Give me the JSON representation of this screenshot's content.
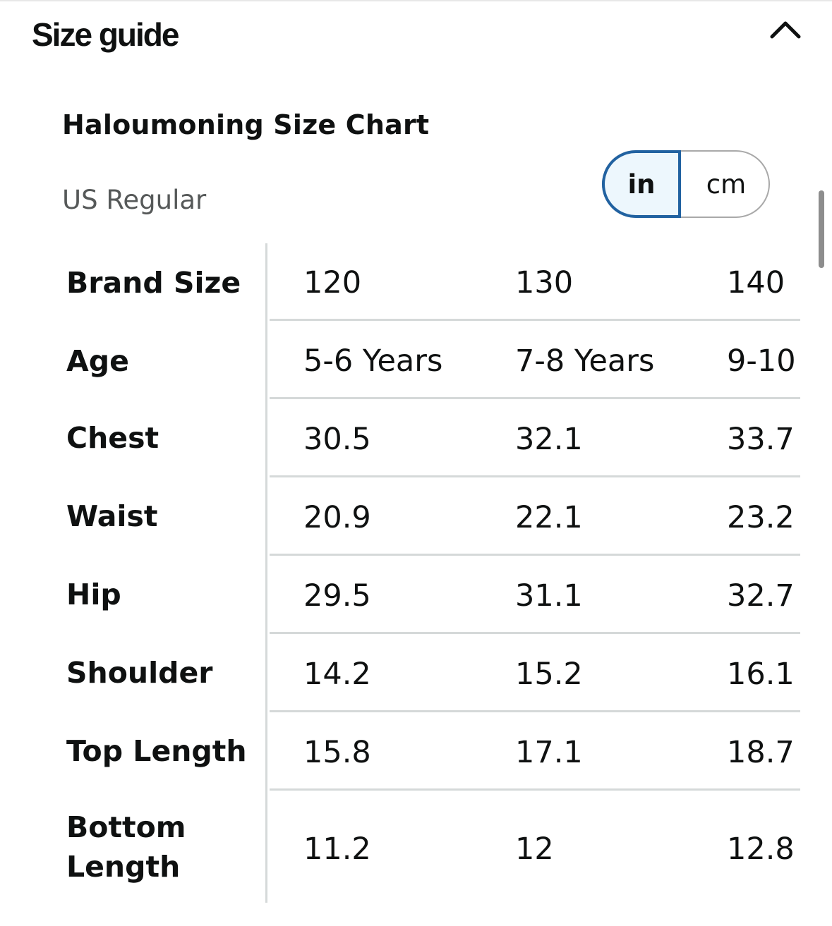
{
  "header": {
    "title": "Size guide",
    "collapse_icon": "chevron-up-icon"
  },
  "chart": {
    "title": "Haloumoning Size Chart",
    "region": "US Regular",
    "units": {
      "in": "in",
      "cm": "cm",
      "selected": "in"
    }
  },
  "table": {
    "rows": [
      {
        "label": "Brand Size",
        "values": [
          "120",
          "130",
          "140"
        ]
      },
      {
        "label": "Age",
        "values": [
          "5-6 Years",
          "7-8 Years",
          "9-10"
        ]
      },
      {
        "label": "Chest",
        "values": [
          "30.5",
          "32.1",
          "33.7"
        ]
      },
      {
        "label": "Waist",
        "values": [
          "20.9",
          "22.1",
          "23.2"
        ]
      },
      {
        "label": "Hip",
        "values": [
          "29.5",
          "31.1",
          "32.7"
        ]
      },
      {
        "label": "Shoulder",
        "values": [
          "14.2",
          "15.2",
          "16.1"
        ]
      },
      {
        "label": "Top Length",
        "values": [
          "15.8",
          "17.1",
          "18.7"
        ]
      },
      {
        "label": "Bottom Length",
        "label_lines": [
          "Bottom",
          "Length"
        ],
        "values": [
          "11.2",
          "12",
          "12.8"
        ]
      }
    ]
  }
}
